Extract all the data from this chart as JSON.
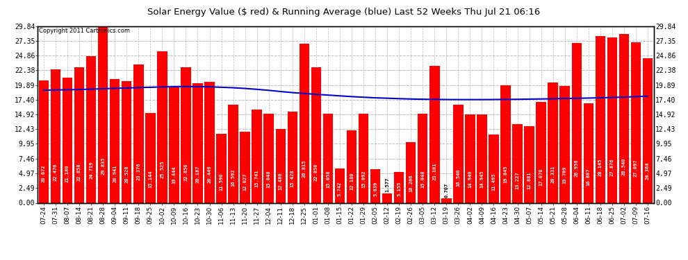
{
  "title": "Solar Energy Value ($ red) & Running Average (blue) Last 52 Weeks Thu Jul 21 06:16",
  "copyright": "Copyright 2011 Cartronics.com",
  "bar_color": "#ff0000",
  "line_color": "#0000cc",
  "background_color": "#ffffff",
  "grid_color": "#bbbbbb",
  "ylim": [
    0.0,
    29.84
  ],
  "ytick_values": [
    0.0,
    2.49,
    4.97,
    7.46,
    9.95,
    12.43,
    14.92,
    17.4,
    19.89,
    22.38,
    24.86,
    27.35,
    29.84
  ],
  "categories": [
    "07-24",
    "07-31",
    "08-07",
    "08-14",
    "08-21",
    "08-28",
    "09-04",
    "09-11",
    "09-18",
    "09-25",
    "10-02",
    "10-09",
    "10-16",
    "10-23",
    "10-30",
    "11-06",
    "11-13",
    "11-20",
    "11-27",
    "12-04",
    "12-11",
    "12-18",
    "12-25",
    "01-01",
    "01-08",
    "01-15",
    "01-22",
    "01-29",
    "02-05",
    "02-12",
    "02-19",
    "02-26",
    "03-05",
    "03-12",
    "03-19",
    "03-26",
    "04-02",
    "04-09",
    "04-16",
    "04-23",
    "04-30",
    "05-07",
    "05-14",
    "05-21",
    "05-28",
    "06-04",
    "06-11",
    "06-18",
    "06-25",
    "07-02",
    "07-09",
    "07-16"
  ],
  "values": [
    20.672,
    22.47,
    21.18,
    22.858,
    24.719,
    29.835,
    20.941,
    20.528,
    23.376,
    15.144,
    25.525,
    19.444,
    22.85,
    20.187,
    20.449,
    11.59,
    16.592,
    12.027,
    15.741,
    15.048,
    12.48,
    15.428,
    26.815,
    22.85,
    15.058,
    5.742,
    12.18,
    15.092,
    5.639,
    1.577,
    5.155,
    10.206,
    15.048,
    23.101,
    0.707,
    16.54,
    14.94,
    14.945,
    11.495,
    19.845,
    13.227,
    12.881,
    17.07,
    20.331,
    19.709,
    26.956,
    16.807,
    28.145,
    27.876,
    28.54,
    27.097,
    24.364
  ],
  "running_avg": [
    19.0,
    19.05,
    19.08,
    19.12,
    19.18,
    19.25,
    19.32,
    19.38,
    19.45,
    19.5,
    19.55,
    19.6,
    19.62,
    19.6,
    19.58,
    19.5,
    19.42,
    19.3,
    19.15,
    18.98,
    18.78,
    18.6,
    18.45,
    18.3,
    18.18,
    18.05,
    17.92,
    17.82,
    17.72,
    17.65,
    17.58,
    17.52,
    17.48,
    17.45,
    17.43,
    17.42,
    17.42,
    17.42,
    17.43,
    17.45,
    17.47,
    17.5,
    17.53,
    17.56,
    17.6,
    17.64,
    17.68,
    17.72,
    17.78,
    17.84,
    17.92,
    18.0
  ]
}
